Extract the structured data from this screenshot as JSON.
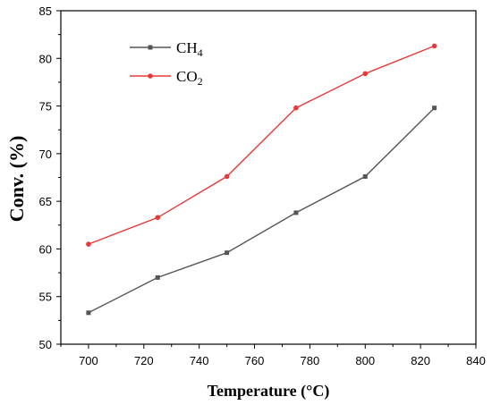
{
  "chart_data": {
    "type": "line",
    "xlabel": "Temperature (°C)",
    "ylabel": "Conv. (%)",
    "xlim": [
      690,
      840
    ],
    "ylim": [
      50,
      85
    ],
    "x_ticks": [
      700,
      720,
      740,
      760,
      780,
      800,
      820,
      840
    ],
    "y_ticks": [
      50,
      55,
      60,
      65,
      70,
      75,
      80,
      85
    ],
    "grid": false,
    "legend_position": "top-left",
    "x": [
      700,
      725,
      750,
      775,
      800,
      825
    ],
    "series": [
      {
        "name": "CH4",
        "label_main": "CH",
        "label_sub": "4",
        "color": "#555555",
        "marker": "square",
        "values": [
          53.3,
          57.0,
          59.6,
          63.8,
          67.6,
          74.8
        ]
      },
      {
        "name": "CO2",
        "label_main": "CO",
        "label_sub": "2",
        "color": "#e8393a",
        "marker": "circle",
        "values": [
          60.5,
          63.3,
          67.6,
          74.8,
          78.4,
          81.3
        ]
      }
    ]
  }
}
